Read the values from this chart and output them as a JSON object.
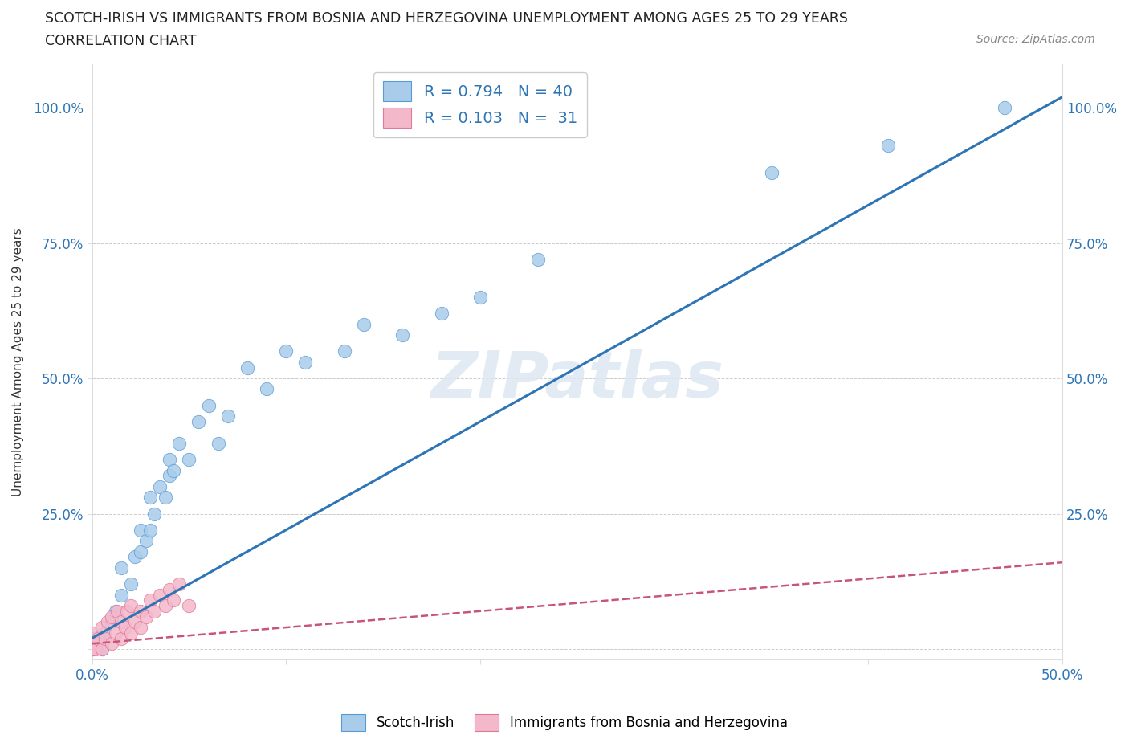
{
  "title_line1": "SCOTCH-IRISH VS IMMIGRANTS FROM BOSNIA AND HERZEGOVINA UNEMPLOYMENT AMONG AGES 25 TO 29 YEARS",
  "title_line2": "CORRELATION CHART",
  "source": "Source: ZipAtlas.com",
  "ylabel": "Unemployment Among Ages 25 to 29 years",
  "x_min": 0.0,
  "x_max": 0.5,
  "y_min": -0.02,
  "y_max": 1.08,
  "blue_R": 0.794,
  "blue_N": 40,
  "pink_R": 0.103,
  "pink_N": 31,
  "blue_color": "#A8CCEA",
  "blue_edge_color": "#5B9BD5",
  "blue_line_color": "#2E75B6",
  "pink_color": "#F4B8CB",
  "pink_edge_color": "#E07898",
  "pink_line_color": "#C9547A",
  "legend_label_blue": "Scotch-Irish",
  "legend_label_pink": "Immigrants from Bosnia and Herzegovina",
  "watermark_text": "ZIPatlas",
  "blue_x": [
    0.0,
    0.0,
    0.005,
    0.007,
    0.01,
    0.012,
    0.015,
    0.015,
    0.02,
    0.022,
    0.025,
    0.025,
    0.028,
    0.03,
    0.03,
    0.032,
    0.035,
    0.038,
    0.04,
    0.04,
    0.042,
    0.045,
    0.05,
    0.055,
    0.06,
    0.065,
    0.07,
    0.08,
    0.09,
    0.1,
    0.11,
    0.13,
    0.14,
    0.16,
    0.18,
    0.2,
    0.23,
    0.35,
    0.41,
    0.47
  ],
  "blue_y": [
    0.0,
    0.02,
    0.0,
    0.03,
    0.05,
    0.07,
    0.1,
    0.15,
    0.12,
    0.17,
    0.18,
    0.22,
    0.2,
    0.22,
    0.28,
    0.25,
    0.3,
    0.28,
    0.32,
    0.35,
    0.33,
    0.38,
    0.35,
    0.42,
    0.45,
    0.38,
    0.43,
    0.52,
    0.48,
    0.55,
    0.53,
    0.55,
    0.6,
    0.58,
    0.62,
    0.65,
    0.72,
    0.88,
    0.93,
    1.0
  ],
  "pink_x": [
    0.0,
    0.0,
    0.0,
    0.002,
    0.003,
    0.005,
    0.005,
    0.007,
    0.008,
    0.01,
    0.01,
    0.012,
    0.013,
    0.015,
    0.015,
    0.017,
    0.018,
    0.02,
    0.02,
    0.022,
    0.025,
    0.025,
    0.028,
    0.03,
    0.032,
    0.035,
    0.038,
    0.04,
    0.042,
    0.045,
    0.05
  ],
  "pink_y": [
    0.0,
    0.01,
    0.03,
    0.0,
    0.02,
    0.0,
    0.04,
    0.02,
    0.05,
    0.01,
    0.06,
    0.03,
    0.07,
    0.02,
    0.05,
    0.04,
    0.07,
    0.03,
    0.08,
    0.05,
    0.04,
    0.07,
    0.06,
    0.09,
    0.07,
    0.1,
    0.08,
    0.11,
    0.09,
    0.12,
    0.08
  ],
  "blue_line_x": [
    0.0,
    0.5
  ],
  "blue_line_y": [
    0.02,
    1.02
  ],
  "pink_line_x": [
    0.0,
    0.5
  ],
  "pink_line_y": [
    0.01,
    0.16
  ]
}
